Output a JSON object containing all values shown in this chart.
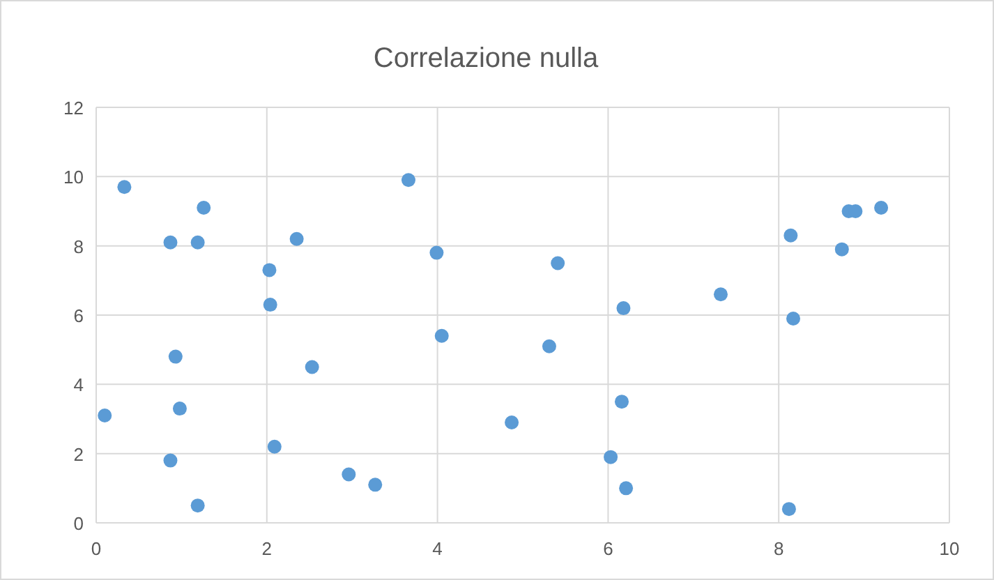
{
  "chart_data": {
    "type": "scatter",
    "title": "Correlazione nulla",
    "color": "#5b9bd5",
    "marker": "circle",
    "grid": true,
    "x": [
      0.1,
      0.33,
      0.87,
      1.19,
      1.26,
      0.93,
      0.98,
      0.87,
      1.19,
      2.03,
      2.04,
      2.35,
      2.53,
      2.09,
      2.96,
      3.27,
      3.66,
      3.99,
      4.05,
      4.87,
      5.31,
      5.41,
      6.18,
      6.16,
      6.03,
      6.21,
      7.32,
      8.14,
      8.17,
      8.12,
      8.74,
      8.82,
      8.9,
      9.2
    ],
    "values": [
      3.1,
      9.7,
      8.1,
      8.1,
      9.1,
      4.8,
      3.3,
      1.8,
      0.5,
      7.3,
      6.3,
      8.2,
      4.5,
      2.2,
      1.4,
      1.1,
      9.9,
      7.8,
      5.4,
      2.9,
      5.1,
      7.5,
      6.2,
      3.5,
      1.9,
      1.0,
      6.6,
      8.3,
      5.9,
      0.4,
      7.9,
      9.0,
      9.0,
      9.1
    ],
    "xlim": [
      0,
      10
    ],
    "xticks": [
      0,
      2,
      4,
      6,
      8,
      10
    ],
    "ylim": [
      0,
      12
    ],
    "yticks": [
      0,
      2,
      4,
      6,
      8,
      10,
      12
    ]
  }
}
